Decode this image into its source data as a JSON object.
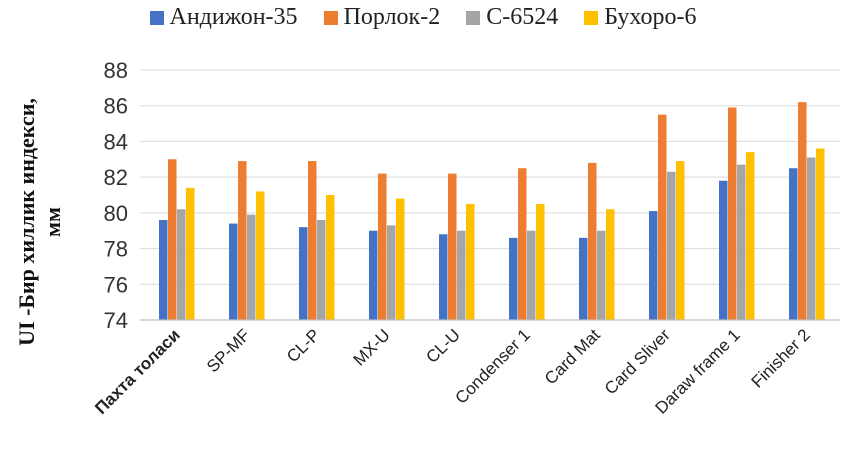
{
  "chart_data": {
    "type": "bar",
    "title": "",
    "xlabel": "",
    "ylabel_line1": "UI -Бир хиллик индекси,",
    "ylabel_line2": "мм",
    "ylim": [
      74,
      88
    ],
    "yticks": [
      74,
      76,
      78,
      80,
      82,
      84,
      86,
      88
    ],
    "grid": true,
    "legend_position": "top",
    "categories": [
      "Пахта толаси",
      "SP-MF",
      "CL-P",
      "MX-U",
      "CL-U",
      "Condenser 1",
      "Card Mat",
      "Card Sliver",
      "Daraw frame 1",
      "Finisher 2"
    ],
    "series": [
      {
        "name": "Андижон-35",
        "color": "#4472C4",
        "values": [
          79.6,
          79.4,
          79.2,
          79.0,
          78.8,
          78.6,
          78.6,
          80.1,
          81.8,
          82.5
        ]
      },
      {
        "name": "Порлок-2",
        "color": "#ED7D31",
        "values": [
          83.0,
          82.9,
          82.9,
          82.2,
          82.2,
          82.5,
          82.8,
          85.5,
          85.9,
          86.2
        ]
      },
      {
        "name": "С-6524",
        "color": "#A5A5A5",
        "values": [
          80.2,
          79.9,
          79.6,
          79.3,
          79.0,
          79.0,
          79.0,
          82.3,
          82.7,
          83.1
        ]
      },
      {
        "name": "Бухоро-6",
        "color": "#FFC000",
        "values": [
          81.4,
          81.2,
          81.0,
          80.8,
          80.5,
          80.5,
          80.2,
          82.9,
          83.4,
          83.6
        ]
      }
    ]
  }
}
